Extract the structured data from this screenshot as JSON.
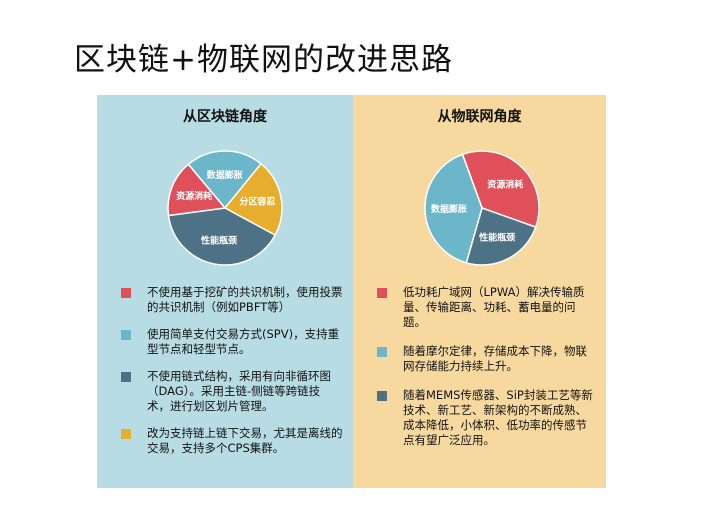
{
  "title": "区块链+物联网的改进思路",
  "colors": {
    "red": "#e0505a",
    "blue": "#6bb7c9",
    "slate": "#4e7285",
    "yellow": "#e7ae2e"
  },
  "left": {
    "heading": "从区块链角度",
    "pie": {
      "slices": [
        {
          "label": "数据膨胀",
          "value": 22,
          "color": "#6bb7c9"
        },
        {
          "label": "分区容忍",
          "value": 22,
          "color": "#e7ae2e"
        },
        {
          "label": "性能瓶颈",
          "value": 40,
          "color": "#4e7285"
        },
        {
          "label": "资源消耗",
          "value": 16,
          "color": "#e0505a"
        }
      ]
    },
    "items": [
      {
        "text": "不使用基于挖矿的共识机制，使用投票的共识机制（例如PBFT等）",
        "color": "#e0505a"
      },
      {
        "text": "使用简单支付交易方式(SPV)，支持重型节点和轻型节点。",
        "color": "#6bb7c9"
      },
      {
        "text": "不使用链式结构，采用有向非循环图（DAG）。采用主链-侧链等跨链技术，进行划区划片管理。",
        "color": "#4e7285"
      },
      {
        "text": "改为支持链上链下交易，尤其是离线的交易，支持多个CPS集群。",
        "color": "#e7ae2e"
      }
    ]
  },
  "right": {
    "heading": "从物联网角度",
    "pie": {
      "slices": [
        {
          "label": "资源消耗",
          "value": 36,
          "color": "#e0505a"
        },
        {
          "label": "性能瓶颈",
          "value": 24,
          "color": "#4e7285"
        },
        {
          "label": "数据膨胀",
          "value": 40,
          "color": "#6bb7c9"
        }
      ]
    },
    "items": [
      {
        "text": "低功耗广域网（LPWA）解决传输质量、传输距离、功耗、蓄电量的问题。",
        "color": "#e0505a"
      },
      {
        "text": "随着摩尔定律，存储成本下降，物联网存储能力持续上升。",
        "color": "#6bb7c9"
      },
      {
        "text": "随着MEMS传感器、SiP封装工艺等新技术、新工艺、新架构的不断成熟、成本降低，小体积、低功率的传感节点有望广泛应用。",
        "color": "#4e7285"
      }
    ]
  }
}
